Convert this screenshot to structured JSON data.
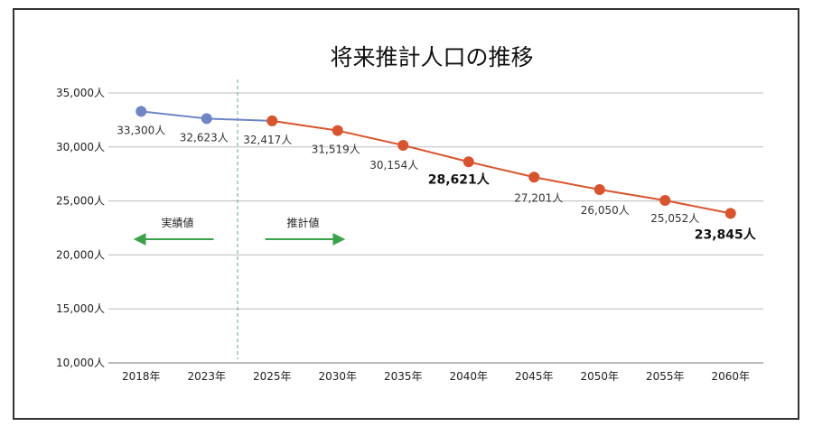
{
  "chart_data": {
    "type": "line",
    "title": "将来推計人口の推移",
    "categories": [
      "2018年",
      "2023年",
      "2025年",
      "2030年",
      "2035年",
      "2040年",
      "2045年",
      "2050年",
      "2055年",
      "2060年"
    ],
    "series": [
      {
        "name": "実績値",
        "color": "#6f86c6",
        "points": [
          {
            "x": "2018年",
            "y": 33300,
            "label": "33,300人"
          },
          {
            "x": "2023年",
            "y": 32623,
            "label": "32,623人"
          },
          {
            "x": "2025年",
            "y": 32417,
            "label": ""
          }
        ]
      },
      {
        "name": "推計値",
        "color": "#d9542c",
        "points": [
          {
            "x": "2025年",
            "y": 32417,
            "label": "32,417人"
          },
          {
            "x": "2030年",
            "y": 31519,
            "label": "31,519人"
          },
          {
            "x": "2035年",
            "y": 30154,
            "label": "30,154人"
          },
          {
            "x": "2040年",
            "y": 28621,
            "label": "28,621人",
            "bold": true
          },
          {
            "x": "2045年",
            "y": 27201,
            "label": "27,201人"
          },
          {
            "x": "2050年",
            "y": 26050,
            "label": "26,050人"
          },
          {
            "x": "2055年",
            "y": 25052,
            "label": "25,052人"
          },
          {
            "x": "2060年",
            "y": 23845,
            "label": "23,845人",
            "bold": true
          }
        ]
      }
    ],
    "ylim": [
      10000,
      35000
    ],
    "y_ticks": [
      10000,
      15000,
      20000,
      25000,
      30000,
      35000
    ],
    "y_tick_labels": [
      "10,000人",
      "15,000人",
      "20,000人",
      "25,000人",
      "30,000人",
      "35,000人"
    ],
    "grid": "horizontal",
    "annotations": {
      "actual_label": "実績値",
      "actual_arrow": "left",
      "estimate_label": "推計値",
      "estimate_arrow": "right",
      "arrow_color": "#3aa24a",
      "divider": "between 2023年 and 2025年",
      "divider_color": "#7fb9a5"
    }
  }
}
